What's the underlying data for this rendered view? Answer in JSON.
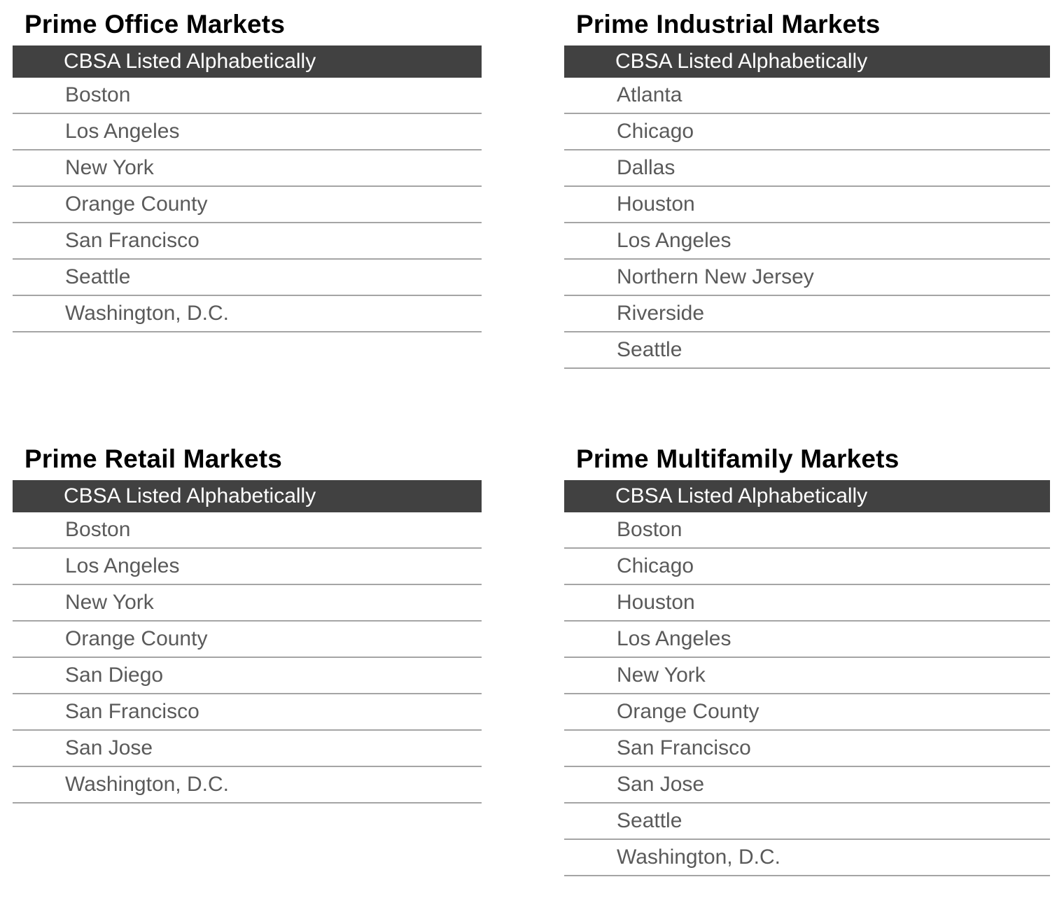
{
  "colors": {
    "header_bg": "#414141",
    "header_text": "#ffffff",
    "row_text": "#5a5a5a",
    "divider": "#a5a5a5",
    "title_text": "#000000",
    "page_bg": "#ffffff"
  },
  "tables": [
    {
      "title": "Prime Office Markets",
      "header": "CBSA Listed Alphabetically",
      "rows": [
        "Boston",
        "Los Angeles",
        "New York",
        "Orange County",
        "San Francisco",
        "Seattle",
        "Washington, D.C."
      ]
    },
    {
      "title": "Prime Industrial Markets",
      "header": "CBSA Listed Alphabetically",
      "rows": [
        "Atlanta",
        "Chicago",
        "Dallas",
        "Houston",
        "Los Angeles",
        "Northern New Jersey",
        "Riverside",
        "Seattle"
      ]
    },
    {
      "title": "Prime Retail Markets",
      "header": "CBSA Listed Alphabetically",
      "rows": [
        "Boston",
        "Los Angeles",
        "New York",
        "Orange County",
        "San Diego",
        "San Francisco",
        "San Jose",
        "Washington, D.C."
      ]
    },
    {
      "title": "Prime Multifamily Markets",
      "header": "CBSA Listed Alphabetically",
      "rows": [
        "Boston",
        "Chicago",
        "Houston",
        "Los Angeles",
        "New York",
        "Orange County",
        "San Francisco",
        "San Jose",
        "Seattle",
        "Washington, D.C."
      ]
    }
  ]
}
